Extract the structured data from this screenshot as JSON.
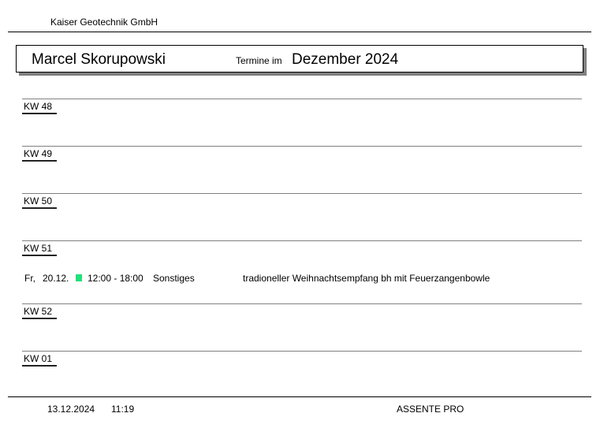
{
  "header": {
    "company": "Kaiser Geotechnik GmbH"
  },
  "title": {
    "person": "Marcel Skorupowski",
    "prefix": "Termine im",
    "month": "Dezember 2024"
  },
  "weeks": [
    {
      "label": "KW 48"
    },
    {
      "label": "KW 49"
    },
    {
      "label": "KW 50"
    },
    {
      "label": "KW 51"
    },
    {
      "label": "KW 52"
    },
    {
      "label": "KW 01"
    }
  ],
  "events": [
    {
      "day": "Fr,",
      "date": "20.12.",
      "time": "12:00 - 18:00",
      "category": "Sonstiges",
      "category_color": "#22e07a",
      "description": "tradioneller Weihnachtsempfang bh mit Feuerzangenbowle"
    }
  ],
  "footer": {
    "date": "13.12.2024",
    "time": "11:19",
    "product": "ASSENTE PRO"
  }
}
